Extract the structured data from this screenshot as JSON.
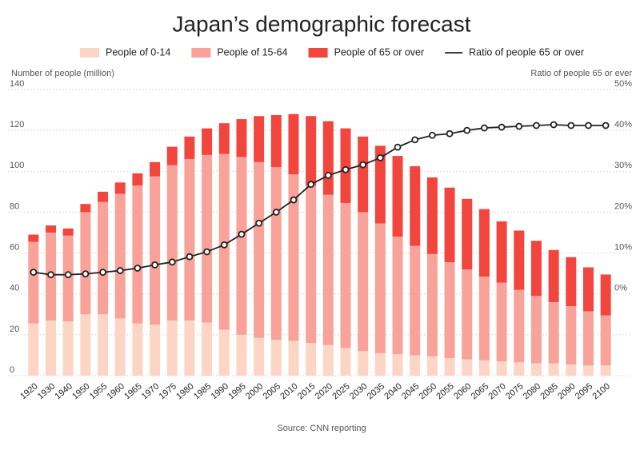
{
  "chart_data": {
    "type": "bar",
    "title": "Japan’s demographic forecast",
    "y_label": "Number of people (million)",
    "y2_label": "Ratio of people 65 or ever",
    "source": "Source: CNN reporting",
    "categories": [
      "1920",
      "1930",
      "1940",
      "1950",
      "1955",
      "1960",
      "1965",
      "1970",
      "1975",
      "1980",
      "1985",
      "1990",
      "1995",
      "2000",
      "2005",
      "2010",
      "2015",
      "2020",
      "2025",
      "2030",
      "2035",
      "2040",
      "2045",
      "2050",
      "2055",
      "2060",
      "2065",
      "2070",
      "2075",
      "2080",
      "2085",
      "2090",
      "2095",
      "2100"
    ],
    "series": [
      {
        "name": "People of 0-14",
        "color": "#fcd5c5",
        "values": [
          25.5,
          27,
          26.5,
          30,
          30,
          28,
          25.5,
          25,
          27,
          27,
          26,
          22.5,
          20,
          18.5,
          17.5,
          17,
          16,
          15,
          13.5,
          12,
          11,
          10.5,
          10,
          9.5,
          8.5,
          8,
          7.5,
          7,
          6.5,
          6,
          6,
          5.5,
          5,
          5
        ]
      },
      {
        "name": "People of 15-64",
        "color": "#f8a29a",
        "values": [
          40,
          43,
          42,
          50,
          55,
          61,
          67.5,
          72.5,
          76,
          79,
          82,
          86,
          87,
          86,
          84.5,
          81.5,
          77,
          73.5,
          71,
          68,
          63.5,
          57.5,
          53.5,
          50,
          47,
          44,
          41,
          38.5,
          35.5,
          33,
          30,
          28.5,
          26.5,
          24.5
        ]
      },
      {
        "name": "People of 65 or over",
        "color": "#f2453d",
        "values": [
          3.5,
          3.5,
          3.5,
          4,
          5,
          5.5,
          6,
          7,
          9,
          11,
          13,
          15,
          18.5,
          22.5,
          25.5,
          29.5,
          34,
          36,
          36.5,
          37,
          38,
          39.5,
          39,
          37.5,
          36.5,
          34.5,
          33,
          30,
          29,
          27,
          25.5,
          24,
          21.5,
          20
        ]
      },
      {
        "name": "Ratio of people 65 or over",
        "color": "#222222",
        "type": "line",
        "axis": "y2",
        "values": [
          5.3,
          4.7,
          4.7,
          4.9,
          5.3,
          5.7,
          6.3,
          7.1,
          7.8,
          9.1,
          10.3,
          12.0,
          14.6,
          17.3,
          20.0,
          23.0,
          26.8,
          29.0,
          30.4,
          31.6,
          33.3,
          35.9,
          37.7,
          38.8,
          39.2,
          40.0,
          40.6,
          40.8,
          41.0,
          41.2,
          41.4,
          41.2,
          41.2,
          41.2
        ]
      }
    ],
    "ylim": [
      0,
      140
    ],
    "yticks": [
      0,
      20,
      40,
      60,
      80,
      100,
      120,
      140
    ],
    "y2lim": [
      -20,
      50
    ],
    "y2ticks": [
      {
        "value": 0,
        "label": "0%"
      },
      {
        "value": 10,
        "label": "10%"
      },
      {
        "value": 20,
        "label": "20%"
      },
      {
        "value": 30,
        "label": "30%"
      },
      {
        "value": 40,
        "label": "40%"
      },
      {
        "value": 50,
        "label": "50%"
      }
    ],
    "grid": true,
    "stacked": true,
    "legend": "top"
  }
}
